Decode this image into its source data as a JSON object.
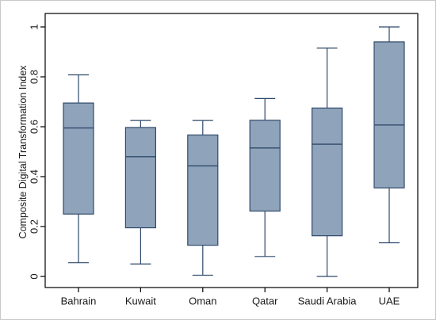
{
  "chart_data": {
    "type": "boxplot",
    "title": "",
    "xlabel": "",
    "ylabel": "Composite Digital Transformation Index",
    "ylim": [
      0,
      1
    ],
    "yticks": [
      "0",
      "0.2",
      "0.4",
      "0.6",
      "0.8",
      "1"
    ],
    "grid": false,
    "categories": [
      "Bahrain",
      "Kuwait",
      "Oman",
      "Qatar",
      "Saudi Arabia",
      "UAE"
    ],
    "boxes": [
      {
        "min": 0.055,
        "q1": 0.25,
        "median": 0.595,
        "q3": 0.695,
        "max": 0.808
      },
      {
        "min": 0.05,
        "q1": 0.195,
        "median": 0.48,
        "q3": 0.597,
        "max": 0.625
      },
      {
        "min": 0.005,
        "q1": 0.125,
        "median": 0.443,
        "q3": 0.567,
        "max": 0.625
      },
      {
        "min": 0.08,
        "q1": 0.262,
        "median": 0.515,
        "q3": 0.626,
        "max": 0.713
      },
      {
        "min": 0.0,
        "q1": 0.163,
        "median": 0.53,
        "q3": 0.675,
        "max": 0.915
      },
      {
        "min": 0.135,
        "q1": 0.355,
        "median": 0.607,
        "q3": 0.94,
        "max": 1.0
      }
    ],
    "colors": {
      "box_fill": "#8fa3bb",
      "stroke": "#2f4a6a",
      "axis": "#000000"
    }
  }
}
